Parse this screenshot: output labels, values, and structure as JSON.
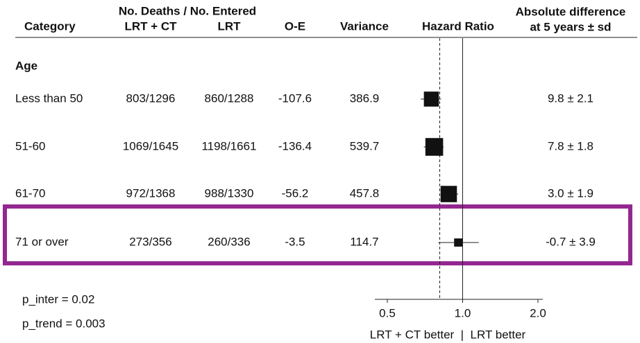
{
  "chart_data": {
    "type": "forest",
    "header": {
      "category": "Category",
      "span": "No. Deaths / No. Entered",
      "arm1": "LRT + CT",
      "arm2": "LRT",
      "oe": "O-E",
      "variance": "Variance",
      "hr": "Hazard Ratio",
      "diff": [
        "Absolute difference",
        "at 5 years ± sd"
      ]
    },
    "group": "Age",
    "rows": [
      {
        "category": "Less than 50",
        "arm1": "803/1296",
        "arm2": "860/1288",
        "oe": -107.6,
        "variance": 386.9,
        "hr": 0.75,
        "ci": [
          0.68,
          0.82
        ],
        "diff": "9.8 ± 2.1"
      },
      {
        "category": "51-60",
        "arm1": "1069/1645",
        "arm2": "1198/1661",
        "oe": -136.4,
        "variance": 539.7,
        "hr": 0.77,
        "ci": [
          0.7,
          0.84
        ],
        "diff": "7.8 ± 1.8"
      },
      {
        "category": "61-70",
        "arm1": "972/1368",
        "arm2": "988/1330",
        "oe": -56.2,
        "variance": 457.8,
        "hr": 0.88,
        "ci": [
          0.82,
          0.96
        ],
        "diff": "3.0 ± 1.9"
      },
      {
        "category": "71 or over",
        "arm1": "273/356",
        "arm2": "260/336",
        "oe": -3.5,
        "variance": 114.7,
        "hr": 0.96,
        "ci": [
          0.8,
          1.16
        ],
        "diff": "-0.7 ± 3.9"
      }
    ],
    "highlight_row": 3,
    "highlight_color": "#93278f",
    "overall_hr": 0.81,
    "xscale": "log",
    "xlim": [
      0.5,
      2.0
    ],
    "xticks": [
      0.5,
      {
        "value": 1,
        "label": "1.0"
      },
      {
        "value": 2,
        "label": "2.0"
      }
    ],
    "notes": [
      "p_inter = 0.02",
      "p_trend = 0.003"
    ],
    "footer": "LRT + CT better  |  LRT better"
  }
}
